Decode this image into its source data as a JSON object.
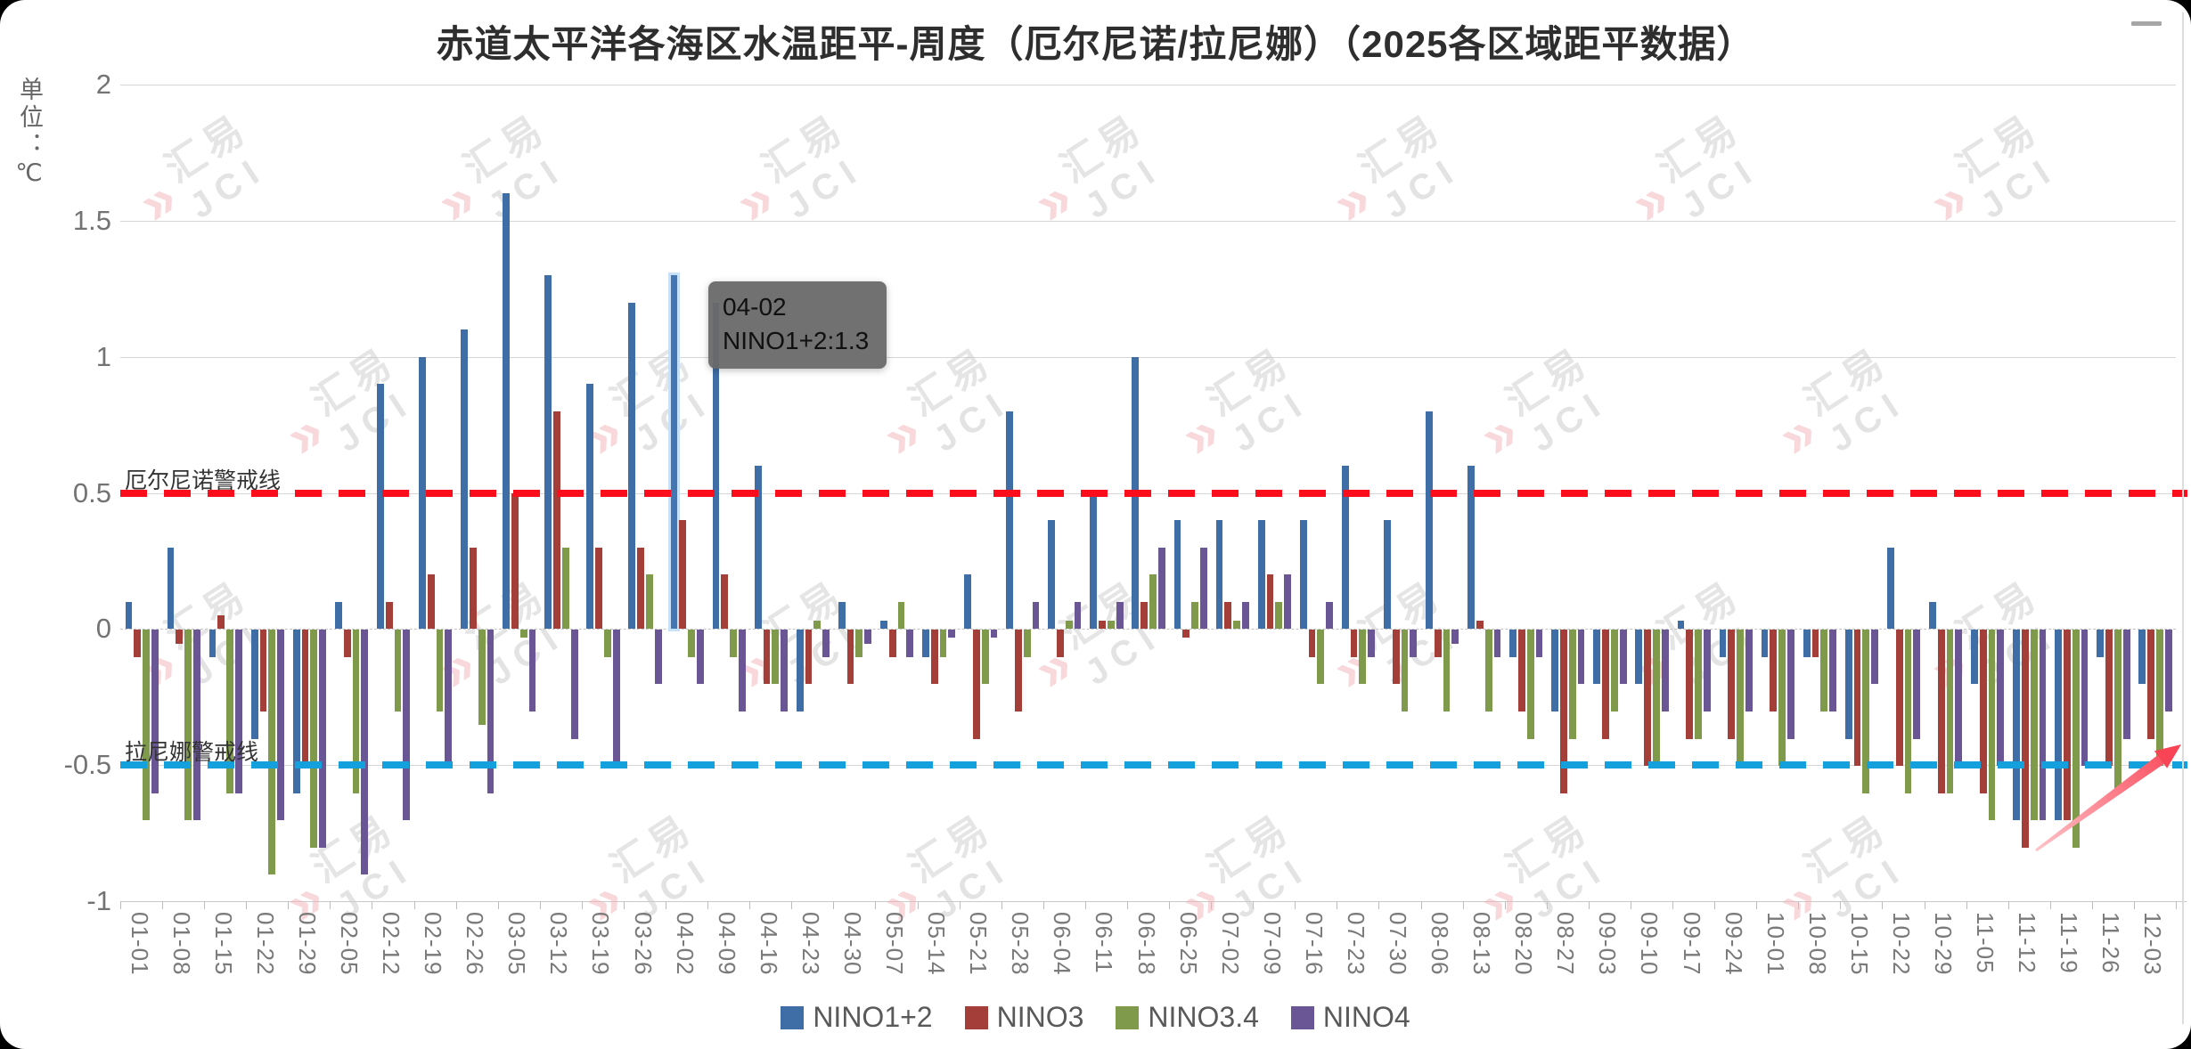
{
  "title": "赤道太平洋各海区水温距平-周度（厄尔尼诺/拉尼娜）（2025各区域距平数据）",
  "y_axis": {
    "unit_label": "单位：℃",
    "ticks": [
      "2",
      "1.5",
      "1",
      "0.5",
      "0",
      "-0.5",
      "-1"
    ]
  },
  "thresholds": {
    "el_nino": {
      "label": "厄尔尼诺警戒线",
      "value": 0.5,
      "color": "#fb0d1c"
    },
    "la_nina": {
      "label": "拉尼娜警戒线",
      "value": -0.5,
      "color": "#14a0dc"
    }
  },
  "tooltip": {
    "date": "04-02",
    "text": "NINO1+2:1.3"
  },
  "watermark": {
    "cn": "汇易",
    "en": "JCI",
    "mark": "»"
  },
  "chart_data": {
    "type": "bar",
    "title": "赤道太平洋各海区水温距平-周度（厄尔尼诺/拉尼娜）（2025各区域距平数据）",
    "ylabel": "单位：℃",
    "ylim": [
      -1,
      2
    ],
    "grid": true,
    "legend_position": "bottom",
    "categories": [
      "01-01",
      "01-08",
      "01-15",
      "01-22",
      "01-29",
      "02-05",
      "02-12",
      "02-19",
      "02-26",
      "03-05",
      "03-12",
      "03-19",
      "03-26",
      "04-02",
      "04-09",
      "04-16",
      "04-23",
      "04-30",
      "05-07",
      "05-14",
      "05-21",
      "05-28",
      "06-04",
      "06-11",
      "06-18",
      "06-25",
      "07-02",
      "07-09",
      "07-16",
      "07-23",
      "07-30",
      "08-06",
      "08-13",
      "08-20",
      "08-27",
      "09-03",
      "09-10",
      "09-17",
      "09-24",
      "10-01",
      "10-08",
      "10-15",
      "10-22",
      "10-29",
      "11-05",
      "11-12",
      "11-19",
      "11-26",
      "12-03"
    ],
    "series": [
      {
        "name": "NINO1+2",
        "color": "#3f6da5",
        "values": [
          0.1,
          0.3,
          -0.1,
          -0.4,
          -0.6,
          0.1,
          0.9,
          1.0,
          1.1,
          1.6,
          1.3,
          0.9,
          1.2,
          1.3,
          1.2,
          0.6,
          -0.3,
          0.1,
          0.03,
          -0.1,
          0.2,
          0.8,
          0.4,
          0.5,
          1.0,
          0.4,
          0.4,
          0.4,
          0.4,
          0.6,
          0.4,
          0.8,
          0.6,
          -0.1,
          -0.3,
          -0.2,
          -0.2,
          0.03,
          -0.1,
          -0.1,
          -0.1,
          -0.4,
          0.3,
          0.1,
          -0.2,
          -0.7,
          -0.7,
          -0.1,
          -0.2
        ]
      },
      {
        "name": "NINO3",
        "color": "#a33e38",
        "values": [
          -0.1,
          -0.05,
          0.05,
          -0.3,
          -0.5,
          -0.1,
          0.1,
          0.2,
          0.3,
          0.5,
          0.8,
          0.3,
          0.3,
          0.4,
          0.2,
          -0.2,
          -0.2,
          -0.2,
          -0.1,
          -0.2,
          -0.4,
          -0.3,
          -0.1,
          0.03,
          0.1,
          -0.03,
          0.1,
          0.2,
          -0.1,
          -0.1,
          -0.2,
          -0.1,
          0.03,
          -0.3,
          -0.6,
          -0.4,
          -0.5,
          -0.4,
          -0.4,
          -0.3,
          -0.1,
          -0.5,
          -0.5,
          -0.6,
          -0.6,
          -0.8,
          -0.7,
          -0.5,
          -0.4
        ]
      },
      {
        "name": "NINO3.4",
        "color": "#7f9a4a",
        "values": [
          -0.7,
          -0.7,
          -0.6,
          -0.9,
          -0.8,
          -0.6,
          -0.3,
          -0.3,
          -0.35,
          -0.03,
          0.3,
          -0.1,
          0.2,
          -0.1,
          -0.1,
          -0.2,
          0.03,
          -0.1,
          0.1,
          -0.1,
          -0.2,
          -0.1,
          0.03,
          0.03,
          0.2,
          0.1,
          0.03,
          0.1,
          -0.2,
          -0.2,
          -0.3,
          -0.3,
          -0.3,
          -0.4,
          -0.4,
          -0.3,
          -0.5,
          -0.4,
          -0.5,
          -0.5,
          -0.3,
          -0.6,
          -0.6,
          -0.6,
          -0.7,
          -0.7,
          -0.8,
          -0.6,
          -0.5
        ]
      },
      {
        "name": "NINO4",
        "color": "#6a5694",
        "values": [
          -0.6,
          -0.7,
          -0.6,
          -0.7,
          -0.8,
          -0.9,
          -0.7,
          -0.5,
          -0.6,
          -0.3,
          -0.4,
          -0.5,
          -0.2,
          -0.2,
          -0.3,
          -0.3,
          -0.1,
          -0.05,
          -0.1,
          -0.03,
          -0.03,
          0.1,
          0.1,
          0.1,
          0.3,
          0.3,
          0.1,
          0.2,
          0.1,
          -0.1,
          -0.1,
          -0.05,
          -0.1,
          -0.1,
          -0.2,
          -0.2,
          -0.3,
          -0.3,
          -0.3,
          -0.4,
          -0.3,
          -0.2,
          -0.4,
          -0.5,
          -0.5,
          -0.7,
          -0.5,
          -0.4,
          -0.3
        ]
      }
    ],
    "highlight": {
      "series": "NINO1+2",
      "category": "04-02"
    },
    "annotations": [
      "el-nino-threshold-line",
      "la-nina-threshold-line",
      "red-trend-arrow-bottom-right"
    ]
  }
}
